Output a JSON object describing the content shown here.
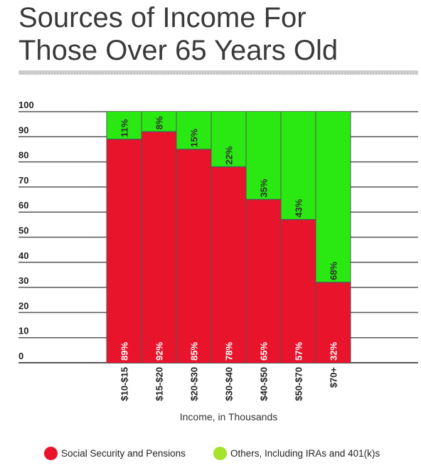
{
  "title_line1": "Sources of Income For",
  "title_line2": "Those Over 65 Years Old",
  "chart_data": {
    "type": "bar",
    "stacked": true,
    "percent_stacked": true,
    "categories": [
      "$10-$15",
      "$15-$20",
      "$20-$30",
      "$30-$40",
      "$40-$50",
      "$50-$70",
      "$70+"
    ],
    "series": [
      {
        "name": "Social Security and Pensions",
        "values": [
          89,
          92,
          85,
          78,
          65,
          57,
          32
        ],
        "labels": [
          "89%",
          "92%",
          "85%",
          "78%",
          "65%",
          "57%",
          "32%"
        ],
        "color": "#e8142b"
      },
      {
        "name": "Others, Including IRAs and 401(k)s",
        "values": [
          11,
          8,
          15,
          22,
          35,
          43,
          68
        ],
        "labels": [
          "11%",
          "8%",
          "15%",
          "22%",
          "35%",
          "43%",
          "68%"
        ],
        "color": "#2ae812"
      }
    ],
    "xlabel": "Income, in Thousands",
    "ylabel": "",
    "ylim": [
      0,
      100
    ],
    "yticks": [
      "0",
      "10",
      "20",
      "30",
      "40",
      "50",
      "60",
      "70",
      "80",
      "90",
      "100"
    ],
    "grid": true,
    "legend_position": "bottom",
    "legend_dot_colors": [
      "#e8142b",
      "#a6e22b"
    ]
  }
}
